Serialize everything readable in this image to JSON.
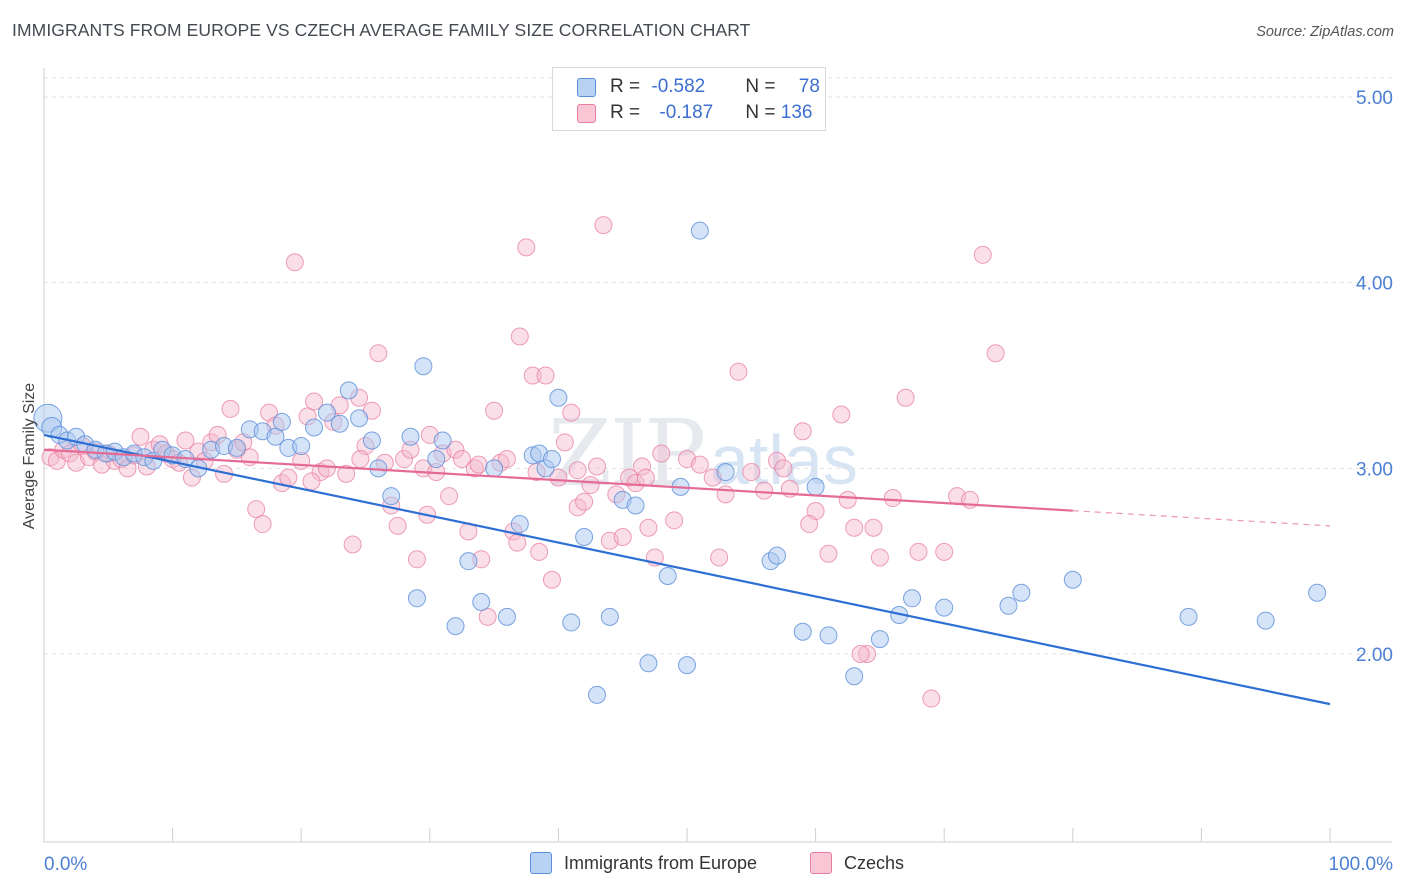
{
  "title": "IMMIGRANTS FROM EUROPE VS CZECH AVERAGE FAMILY SIZE CORRELATION CHART",
  "source": "Source: ZipAtlas.com",
  "watermark": {
    "zip": "ZIP",
    "atlas": "atlas"
  },
  "legend": {
    "rows": [
      {
        "r_label": "R = ",
        "r_value": "-0.582",
        "n_label": "N = ",
        "n_value": "78"
      },
      {
        "r_label": "R = ",
        "r_value": "-0.187",
        "n_label": "N = ",
        "n_value": "136"
      }
    ]
  },
  "bottom_legend": {
    "europe": "Immigrants from Europe",
    "czechs": "Czechs"
  },
  "colors": {
    "europe_fill": "#aac7ef",
    "europe_stroke": "#5b8fd8",
    "europe_line": "#2e6fd3",
    "czech_fill": "#f5b9cb",
    "czech_stroke": "#e87fa0",
    "czech_line": "#e56a95",
    "tick": "#4a7fd4"
  },
  "chart_data": {
    "type": "scatter",
    "title": "IMMIGRANTS FROM EUROPE VS CZECH AVERAGE FAMILY SIZE CORRELATION CHART",
    "xlabel": "",
    "ylabel": "Average Family Size",
    "xlim": [
      0,
      100
    ],
    "ylim": [
      1.0,
      5.1
    ],
    "x_tick_labels": [
      "0.0%",
      "100.0%"
    ],
    "y_ticks": [
      2.0,
      3.0,
      4.0,
      5.0
    ],
    "y_tick_labels": [
      "2.00",
      "3.00",
      "4.00",
      "5.00"
    ],
    "grid": true,
    "legend_position": "top-center",
    "series": [
      {
        "name": "Immigrants from Europe",
        "trend": {
          "x": [
            0,
            100
          ],
          "y": [
            3.18,
            1.73
          ]
        },
        "points": [
          [
            0.3,
            3.27
          ],
          [
            0.6,
            3.22
          ],
          [
            1.2,
            3.18
          ],
          [
            1.8,
            3.15
          ],
          [
            2.5,
            3.17
          ],
          [
            3.2,
            3.13
          ],
          [
            4.0,
            3.1
          ],
          [
            4.8,
            3.08
          ],
          [
            5.5,
            3.09
          ],
          [
            6.2,
            3.06
          ],
          [
            7.0,
            3.08
          ],
          [
            7.8,
            3.06
          ],
          [
            8.5,
            3.04
          ],
          [
            9.2,
            3.1
          ],
          [
            10.0,
            3.07
          ],
          [
            11.0,
            3.05
          ],
          [
            12.0,
            3.0
          ],
          [
            13.0,
            3.1
          ],
          [
            14.0,
            3.12
          ],
          [
            15.0,
            3.11
          ],
          [
            16.0,
            3.21
          ],
          [
            17.0,
            3.2
          ],
          [
            18.0,
            3.17
          ],
          [
            18.5,
            3.25
          ],
          [
            19.0,
            3.11
          ],
          [
            20.0,
            3.12
          ],
          [
            21.0,
            3.22
          ],
          [
            22.0,
            3.3
          ],
          [
            23.0,
            3.24
          ],
          [
            23.7,
            3.42
          ],
          [
            24.5,
            3.27
          ],
          [
            25.5,
            3.15
          ],
          [
            26.0,
            3.0
          ],
          [
            27.0,
            2.85
          ],
          [
            28.5,
            3.17
          ],
          [
            29.0,
            2.3
          ],
          [
            29.5,
            3.55
          ],
          [
            30.5,
            3.05
          ],
          [
            31.0,
            3.15
          ],
          [
            32.0,
            2.15
          ],
          [
            33.0,
            2.5
          ],
          [
            34.0,
            2.28
          ],
          [
            35.0,
            3.0
          ],
          [
            36.0,
            2.2
          ],
          [
            37.0,
            2.7
          ],
          [
            38.0,
            3.07
          ],
          [
            38.5,
            3.08
          ],
          [
            39.0,
            3.0
          ],
          [
            39.5,
            3.05
          ],
          [
            40.0,
            3.38
          ],
          [
            41.0,
            2.17
          ],
          [
            42.0,
            2.63
          ],
          [
            43.0,
            1.78
          ],
          [
            44.0,
            2.2
          ],
          [
            45.0,
            2.83
          ],
          [
            46.0,
            2.8
          ],
          [
            47.0,
            1.95
          ],
          [
            48.5,
            2.42
          ],
          [
            49.5,
            2.9
          ],
          [
            50.0,
            1.94
          ],
          [
            51.0,
            4.28
          ],
          [
            53.0,
            2.98
          ],
          [
            56.5,
            2.5
          ],
          [
            57.0,
            2.53
          ],
          [
            59.0,
            2.12
          ],
          [
            60.0,
            2.9
          ],
          [
            61.0,
            2.1
          ],
          [
            63.0,
            1.88
          ],
          [
            65.0,
            2.08
          ],
          [
            66.5,
            2.21
          ],
          [
            67.5,
            2.3
          ],
          [
            70.0,
            2.25
          ],
          [
            75.0,
            2.26
          ],
          [
            76.0,
            2.33
          ],
          [
            80.0,
            2.4
          ],
          [
            89.0,
            2.2
          ],
          [
            95.0,
            2.18
          ],
          [
            99.0,
            2.33
          ]
        ]
      },
      {
        "name": "Czechs",
        "trend": {
          "x": [
            0,
            100
          ],
          "y": [
            3.1,
            2.69
          ],
          "solid_until": 80
        },
        "points": [
          [
            0.5,
            3.06
          ],
          [
            1.0,
            3.04
          ],
          [
            1.5,
            3.1
          ],
          [
            2.0,
            3.08
          ],
          [
            2.5,
            3.03
          ],
          [
            3.0,
            3.12
          ],
          [
            3.5,
            3.06
          ],
          [
            4.0,
            3.09
          ],
          [
            4.5,
            3.02
          ],
          [
            5.0,
            3.08
          ],
          [
            5.5,
            3.04
          ],
          [
            6.0,
            3.05
          ],
          [
            6.5,
            3.0
          ],
          [
            7.0,
            3.07
          ],
          [
            7.5,
            3.17
          ],
          [
            8.0,
            3.01
          ],
          [
            8.5,
            3.1
          ],
          [
            9.0,
            3.13
          ],
          [
            9.5,
            3.08
          ],
          [
            10.0,
            3.05
          ],
          [
            10.5,
            3.03
          ],
          [
            11.0,
            3.15
          ],
          [
            11.5,
            2.95
          ],
          [
            12.0,
            3.09
          ],
          [
            12.5,
            3.04
          ],
          [
            13.0,
            3.14
          ],
          [
            13.5,
            3.18
          ],
          [
            14.0,
            2.97
          ],
          [
            14.5,
            3.32
          ],
          [
            15.0,
            3.1
          ],
          [
            15.5,
            3.14
          ],
          [
            16.0,
            3.06
          ],
          [
            16.5,
            2.78
          ],
          [
            17.0,
            2.7
          ],
          [
            17.5,
            3.3
          ],
          [
            18.0,
            3.23
          ],
          [
            18.5,
            2.92
          ],
          [
            19.0,
            2.95
          ],
          [
            19.5,
            4.11
          ],
          [
            20.0,
            3.04
          ],
          [
            20.5,
            3.28
          ],
          [
            21.0,
            3.36
          ],
          [
            21.5,
            2.98
          ],
          [
            22.0,
            3.0
          ],
          [
            22.5,
            3.25
          ],
          [
            23.0,
            3.34
          ],
          [
            23.5,
            2.97
          ],
          [
            24.0,
            2.59
          ],
          [
            24.5,
            3.38
          ],
          [
            25.0,
            3.12
          ],
          [
            25.5,
            3.31
          ],
          [
            26.0,
            3.62
          ],
          [
            26.5,
            3.03
          ],
          [
            27.0,
            2.8
          ],
          [
            27.5,
            2.69
          ],
          [
            28.0,
            3.05
          ],
          [
            28.5,
            3.1
          ],
          [
            29.0,
            2.51
          ],
          [
            29.5,
            3.0
          ],
          [
            30.0,
            3.18
          ],
          [
            30.5,
            2.98
          ],
          [
            31.0,
            3.08
          ],
          [
            31.5,
            2.85
          ],
          [
            32.0,
            3.1
          ],
          [
            32.5,
            3.05
          ],
          [
            33.0,
            2.66
          ],
          [
            33.5,
            3.0
          ],
          [
            34.0,
            2.51
          ],
          [
            34.5,
            2.2
          ],
          [
            35.0,
            3.31
          ],
          [
            35.5,
            3.03
          ],
          [
            36.0,
            3.05
          ],
          [
            36.5,
            2.66
          ],
          [
            37.0,
            3.71
          ],
          [
            37.5,
            4.19
          ],
          [
            38.0,
            3.5
          ],
          [
            38.5,
            2.55
          ],
          [
            39.0,
            3.5
          ],
          [
            39.5,
            2.4
          ],
          [
            40.0,
            2.95
          ],
          [
            40.5,
            3.14
          ],
          [
            41.0,
            3.3
          ],
          [
            41.5,
            2.79
          ],
          [
            42.0,
            2.82
          ],
          [
            42.5,
            2.91
          ],
          [
            43.0,
            3.01
          ],
          [
            43.5,
            4.31
          ],
          [
            44.0,
            2.61
          ],
          [
            45.0,
            2.63
          ],
          [
            45.5,
            2.95
          ],
          [
            46.0,
            2.92
          ],
          [
            46.5,
            3.01
          ],
          [
            47.0,
            2.68
          ],
          [
            48.0,
            3.08
          ],
          [
            49.0,
            2.72
          ],
          [
            50.0,
            3.05
          ],
          [
            51.0,
            3.02
          ],
          [
            52.0,
            2.95
          ],
          [
            53.0,
            2.86
          ],
          [
            54.0,
            3.52
          ],
          [
            55.0,
            2.98
          ],
          [
            56.0,
            2.88
          ],
          [
            57.0,
            3.04
          ],
          [
            58.0,
            2.89
          ],
          [
            59.0,
            3.2
          ],
          [
            60.0,
            2.77
          ],
          [
            61.0,
            2.54
          ],
          [
            62.0,
            3.29
          ],
          [
            63.0,
            2.68
          ],
          [
            64.0,
            2.0
          ],
          [
            65.0,
            2.52
          ],
          [
            66.0,
            2.84
          ],
          [
            67.0,
            3.38
          ],
          [
            68.0,
            2.55
          ],
          [
            69.0,
            1.76
          ],
          [
            70.0,
            2.55
          ],
          [
            71.0,
            2.85
          ],
          [
            72.0,
            2.83
          ],
          [
            73.0,
            4.15
          ],
          [
            74.0,
            3.62
          ],
          [
            52.5,
            2.52
          ],
          [
            47.5,
            2.52
          ],
          [
            57.5,
            3.0
          ],
          [
            44.5,
            2.86
          ],
          [
            46.8,
            2.95
          ],
          [
            36.8,
            2.6
          ],
          [
            38.3,
            2.98
          ],
          [
            63.5,
            2.0
          ],
          [
            64.5,
            2.68
          ],
          [
            41.5,
            2.99
          ],
          [
            59.5,
            2.7
          ],
          [
            29.8,
            2.75
          ],
          [
            24.6,
            3.05
          ],
          [
            33.8,
            3.02
          ],
          [
            20.8,
            2.93
          ],
          [
            62.5,
            2.83
          ]
        ]
      }
    ]
  }
}
